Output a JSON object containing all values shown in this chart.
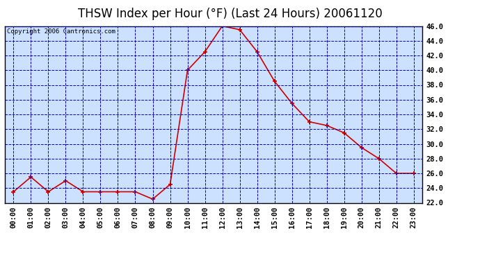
{
  "title": "THSW Index per Hour (°F) (Last 24 Hours) 20061120",
  "copyright": "Copyright 2006 Cantronics.com",
  "hours": [
    "00:00",
    "01:00",
    "02:00",
    "03:00",
    "04:00",
    "05:00",
    "06:00",
    "07:00",
    "08:00",
    "09:00",
    "10:00",
    "11:00",
    "12:00",
    "13:00",
    "14:00",
    "15:00",
    "16:00",
    "17:00",
    "18:00",
    "19:00",
    "20:00",
    "21:00",
    "22:00",
    "23:00"
  ],
  "values": [
    23.5,
    25.5,
    23.5,
    25.0,
    23.5,
    23.5,
    23.5,
    23.5,
    22.5,
    24.5,
    40.0,
    42.5,
    46.0,
    45.5,
    42.5,
    38.5,
    35.5,
    33.0,
    32.5,
    31.5,
    29.5,
    28.0,
    26.0,
    26.0
  ],
  "ylim": [
    22.0,
    46.0
  ],
  "yticks": [
    22.0,
    24.0,
    26.0,
    28.0,
    30.0,
    32.0,
    34.0,
    36.0,
    38.0,
    40.0,
    42.0,
    44.0,
    46.0
  ],
  "line_color": "#cc0000",
  "marker_color": "#cc0000",
  "grid_color": "#0000bb",
  "plot_bg": "#cce0ff",
  "fig_bg": "#ffffff",
  "border_color": "#000000",
  "title_color": "#000000",
  "tick_color": "#000000",
  "copyright_color": "#000000",
  "title_fontsize": 12,
  "copyright_fontsize": 6.5,
  "axis_fontsize": 7.5
}
